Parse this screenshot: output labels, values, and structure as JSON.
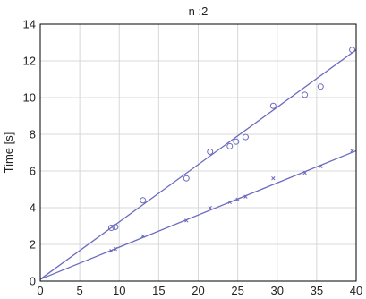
{
  "chart_data": {
    "type": "scatter",
    "title": "n :2",
    "xlabel": "",
    "ylabel": "Time [s]",
    "xlim": [
      0,
      40
    ],
    "ylim": [
      0,
      14
    ],
    "x_ticks": [
      0,
      5,
      10,
      15,
      20,
      25,
      30,
      35,
      40
    ],
    "y_ticks": [
      0,
      2,
      4,
      6,
      8,
      10,
      12,
      14
    ],
    "grid": true,
    "legend": "none",
    "series": [
      {
        "marker": "circle",
        "color": "#6b6bbf",
        "points": [
          [
            9,
            2.9
          ],
          [
            9.5,
            2.95
          ],
          [
            13,
            4.4
          ],
          [
            18.5,
            5.6
          ],
          [
            21.5,
            7.05
          ],
          [
            24,
            7.35
          ],
          [
            24.8,
            7.6
          ],
          [
            26,
            7.85
          ],
          [
            29.5,
            9.55
          ],
          [
            33.5,
            10.15
          ],
          [
            35.5,
            10.6
          ],
          [
            39.5,
            12.6
          ]
        ],
        "fit": [
          [
            0,
            0.1
          ],
          [
            40,
            12.6
          ]
        ]
      },
      {
        "marker": "x",
        "color": "#6b6bbf",
        "points": [
          [
            9,
            1.65
          ],
          [
            9.5,
            1.75
          ],
          [
            13,
            2.45
          ],
          [
            18.5,
            3.3
          ],
          [
            21.5,
            4.0
          ],
          [
            24,
            4.3
          ],
          [
            25,
            4.45
          ],
          [
            26,
            4.6
          ],
          [
            29.5,
            5.6
          ],
          [
            33.5,
            5.9
          ],
          [
            35.5,
            6.25
          ],
          [
            39.5,
            7.1
          ]
        ],
        "fit": [
          [
            0,
            0.1
          ],
          [
            40,
            7.1
          ]
        ]
      }
    ]
  }
}
